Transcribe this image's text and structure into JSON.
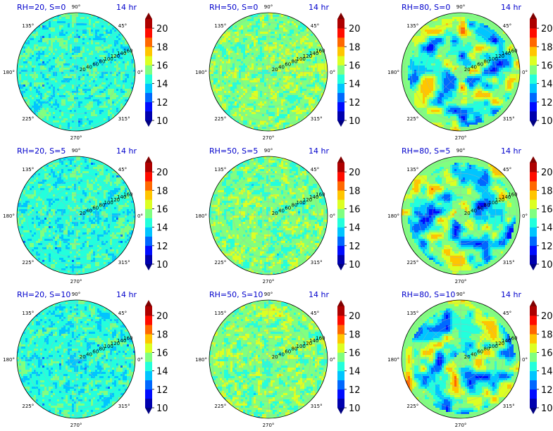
{
  "chart_data": {
    "type": "heatmap",
    "subtype": "polar-filled-contour-grid",
    "colormap": "jet",
    "title_color": "#0000cc",
    "angle_tick_labels": [
      "45°",
      "90°",
      "135°",
      "180°",
      "225°",
      "270°",
      "315°",
      "0°"
    ],
    "radial_tick_labels": [
      "20",
      "40",
      "60",
      "80",
      "100",
      "120",
      "140",
      "160"
    ],
    "colorbar": {
      "range": [
        10,
        21
      ],
      "tick_labels": [
        "10",
        "12",
        "14",
        "16",
        "18",
        "20"
      ],
      "levels": [
        10,
        11,
        12,
        13,
        14,
        15,
        16,
        17,
        18,
        19,
        20,
        21
      ],
      "extend": "both"
    },
    "panels": [
      {
        "title": "RH=20, S=0",
        "time": "14 hr",
        "mean_value": 14.6,
        "spread": 1.3,
        "low_fraction": 0.05,
        "pattern": "fine"
      },
      {
        "title": "RH=50, S=0",
        "time": "14 hr",
        "mean_value": 15.5,
        "spread": 1.4,
        "low_fraction": 0.0,
        "pattern": "fine"
      },
      {
        "title": "RH=80, S=0",
        "time": "14 hr",
        "mean_value": 14.8,
        "spread": 2.8,
        "low_fraction": 0.25,
        "pattern": "spiral"
      },
      {
        "title": "RH=20, S=5",
        "time": "14 hr",
        "mean_value": 14.5,
        "spread": 1.3,
        "low_fraction": 0.06,
        "pattern": "fine"
      },
      {
        "title": "RH=50, S=5",
        "time": "14 hr",
        "mean_value": 15.4,
        "spread": 1.4,
        "low_fraction": 0.0,
        "pattern": "fine"
      },
      {
        "title": "RH=80, S=5",
        "time": "14 hr",
        "mean_value": 14.7,
        "spread": 2.9,
        "low_fraction": 0.28,
        "pattern": "spiral"
      },
      {
        "title": "RH=20, S=10",
        "time": "14 hr",
        "mean_value": 14.5,
        "spread": 1.3,
        "low_fraction": 0.06,
        "pattern": "fine"
      },
      {
        "title": "RH=50, S=10",
        "time": "14 hr",
        "mean_value": 15.5,
        "spread": 1.4,
        "low_fraction": 0.0,
        "pattern": "fine"
      },
      {
        "title": "RH=80, S=10",
        "time": "14 hr",
        "mean_value": 14.7,
        "spread": 2.9,
        "low_fraction": 0.27,
        "pattern": "spiral"
      }
    ]
  }
}
